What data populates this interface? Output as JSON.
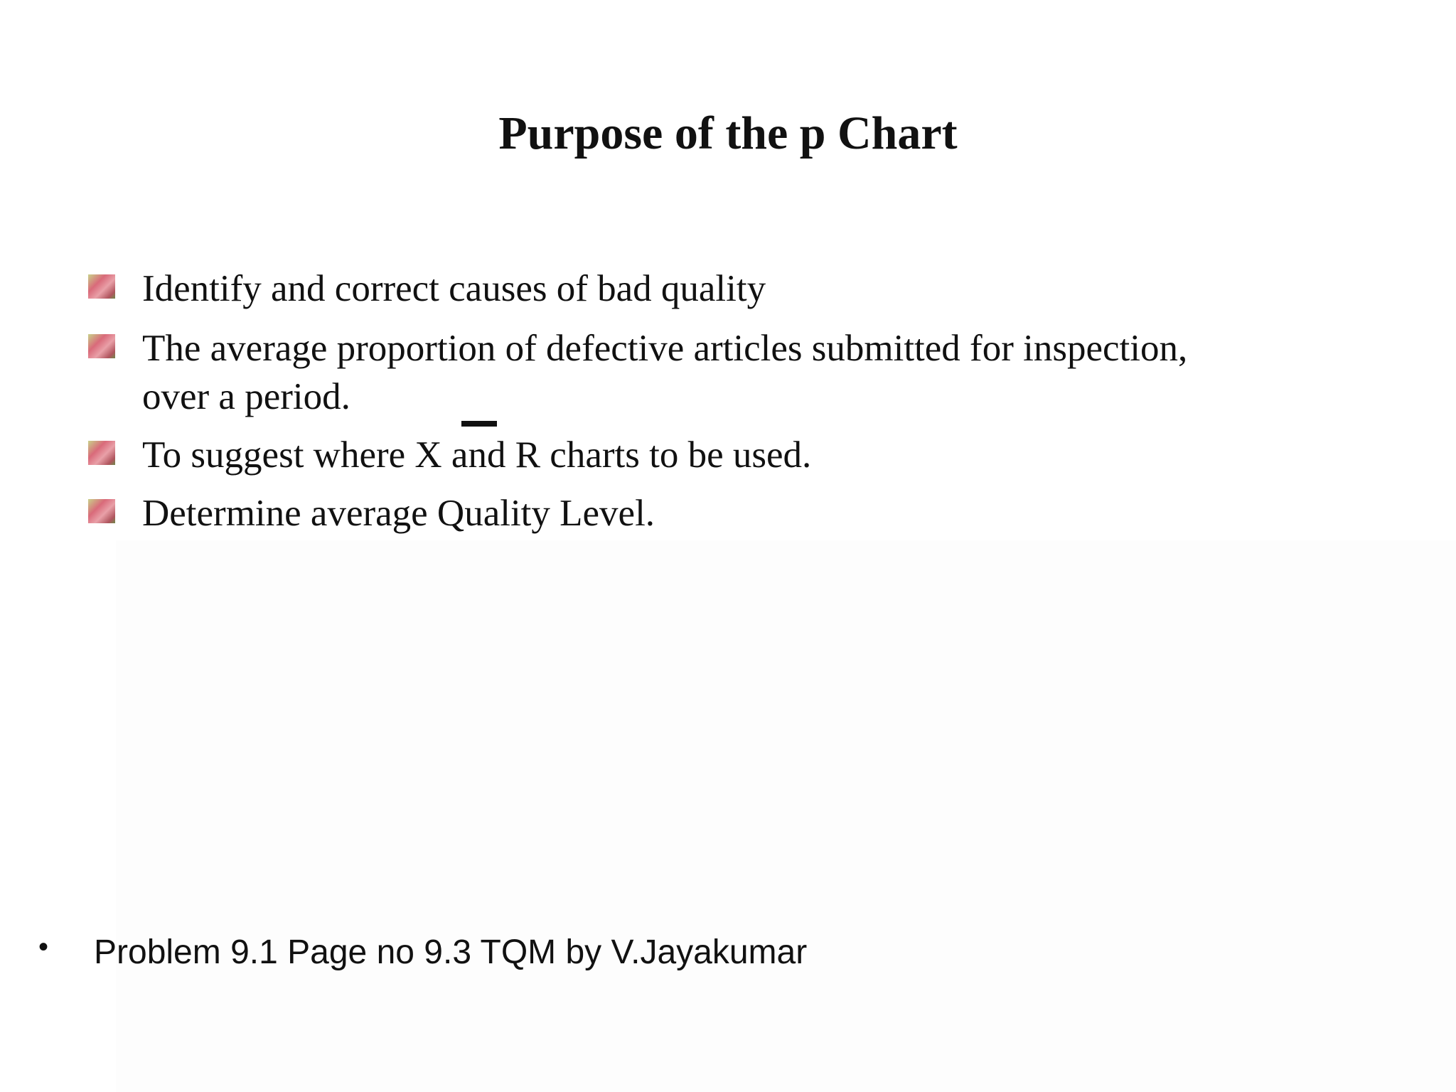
{
  "header": {
    "title": "Purpose of the p Chart"
  },
  "bullets": [
    "Identify and correct causes of bad quality",
    "The average proportion of defective articles submitted for inspection, over a period.",
    "To suggest where X and R charts to be used.",
    "Determine average Quality Level."
  ],
  "footer": {
    "note": "Problem 9.1 Page no 9.3 TQM by V.Jayakumar"
  }
}
